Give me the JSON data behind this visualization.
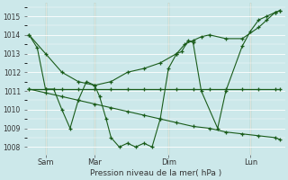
{
  "xlabel": "Pression niveau de la mer( hPa )",
  "bg_color": "#cce8ea",
  "grid_color": "#ffffff",
  "line_color": "#1a5c1a",
  "ylim": [
    1007.6,
    1015.7
  ],
  "yticks": [
    1008,
    1009,
    1010,
    1011,
    1012,
    1013,
    1014,
    1015
  ],
  "ytick_labels": [
    "1008",
    "1009",
    "1010",
    "1011",
    "1012",
    "1013",
    "1014",
    "1015"
  ],
  "s1_x": [
    0,
    0.5,
    1.0,
    1.5,
    2.0,
    2.5,
    3.0,
    3.5,
    4.0,
    4.3,
    4.7,
    5.0,
    5.5,
    6.0,
    6.5,
    7.0,
    7.5,
    8.0,
    8.5,
    9.0,
    9.3,
    9.7,
    10.0,
    10.5,
    11.5,
    12.0,
    13.0,
    13.5,
    14.0,
    14.5,
    15.0,
    15.3
  ],
  "s1_y": [
    1014.0,
    1013.3,
    1011.1,
    1011.1,
    1010.0,
    1009.0,
    1010.5,
    1011.5,
    1011.3,
    1010.7,
    1009.5,
    1008.5,
    1008.0,
    1008.2,
    1008.0,
    1008.2,
    1008.0,
    1009.5,
    1012.2,
    1013.0,
    1013.1,
    1013.7,
    1013.6,
    1011.0,
    1009.0,
    1011.0,
    1013.4,
    1014.2,
    1014.8,
    1015.0,
    1015.2,
    1015.3
  ],
  "s2_x": [
    0,
    1.0,
    2.0,
    3.0,
    4.0,
    5.0,
    6.0,
    7.0,
    8.0,
    9.0,
    10.0,
    11.0,
    12.0,
    13.0,
    14.0,
    15.0,
    15.3
  ],
  "s2_y": [
    1011.1,
    1011.1,
    1011.1,
    1011.1,
    1011.1,
    1011.1,
    1011.1,
    1011.1,
    1011.1,
    1011.1,
    1011.1,
    1011.1,
    1011.1,
    1011.1,
    1011.1,
    1011.1,
    1011.1
  ],
  "s3_x": [
    0,
    1.0,
    2.0,
    3.0,
    4.0,
    5.0,
    6.0,
    7.0,
    8.0,
    9.0,
    10.0,
    11.0,
    12.0,
    13.0,
    14.0,
    15.0,
    15.3
  ],
  "s3_y": [
    1011.1,
    1010.9,
    1010.7,
    1010.5,
    1010.3,
    1010.1,
    1009.9,
    1009.7,
    1009.5,
    1009.3,
    1009.1,
    1009.0,
    1008.8,
    1008.7,
    1008.6,
    1008.5,
    1008.4
  ],
  "s4_x": [
    0,
    1.0,
    2.0,
    3.0,
    4.0,
    5.0,
    6.0,
    7.0,
    8.0,
    9.0,
    9.5,
    10.0,
    10.5,
    11.0,
    12.0,
    13.0,
    14.0,
    14.5,
    15.0,
    15.3
  ],
  "s4_y": [
    1014.0,
    1013.0,
    1012.0,
    1011.5,
    1011.3,
    1011.5,
    1012.0,
    1012.2,
    1012.5,
    1013.0,
    1013.5,
    1013.7,
    1013.9,
    1014.0,
    1013.8,
    1013.8,
    1014.4,
    1014.8,
    1015.2,
    1015.3
  ],
  "vlines": [
    1.0,
    4.0,
    8.5,
    13.5
  ],
  "xtick_pos": [
    1.0,
    4.0,
    8.5,
    13.5
  ],
  "xtick_labels": [
    "Sam",
    "Mar",
    "Dim",
    "Lun"
  ]
}
